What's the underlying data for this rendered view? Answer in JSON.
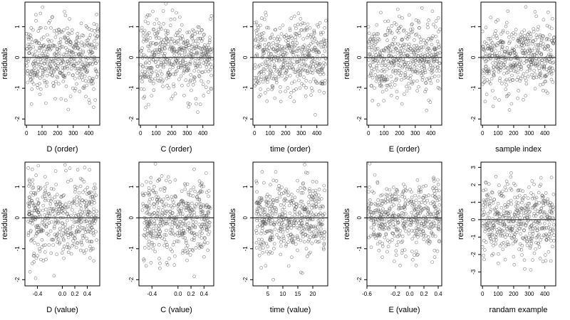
{
  "chart_data": [
    {
      "type": "scatter",
      "xlabel": "D (order)",
      "ylabel": "residuals",
      "xlim": [
        -10,
        470
      ],
      "ylim": [
        -2.2,
        1.8
      ],
      "xticks": [
        "0",
        "100",
        "200",
        "300",
        "400"
      ],
      "xtick_values": [
        0,
        100,
        200,
        300,
        400
      ],
      "yticks": [
        "-2",
        "-1",
        "0",
        "1"
      ],
      "ytick_values": [
        -2,
        -1,
        0,
        1
      ],
      "hline": 0,
      "x_kind": "index",
      "n": 460,
      "y_sd": 0.6,
      "seed": 11
    },
    {
      "type": "scatter",
      "xlabel": "C (order)",
      "ylabel": "residuals",
      "xlim": [
        -10,
        470
      ],
      "ylim": [
        -2.2,
        1.8
      ],
      "xticks": [
        "0",
        "100",
        "200",
        "300",
        "400"
      ],
      "xtick_values": [
        0,
        100,
        200,
        300,
        400
      ],
      "yticks": [
        "-2",
        "-1",
        "0",
        "1"
      ],
      "ytick_values": [
        -2,
        -1,
        0,
        1
      ],
      "hline": 0,
      "x_kind": "index",
      "n": 460,
      "y_sd": 0.6,
      "seed": 23
    },
    {
      "type": "scatter",
      "xlabel": "time (order)",
      "ylabel": "residuals",
      "xlim": [
        -10,
        470
      ],
      "ylim": [
        -2.2,
        1.8
      ],
      "xticks": [
        "0",
        "100",
        "200",
        "300",
        "400"
      ],
      "xtick_values": [
        0,
        100,
        200,
        300,
        400
      ],
      "yticks": [
        "-2",
        "-1",
        "0",
        "1"
      ],
      "ytick_values": [
        -2,
        -1,
        0,
        1
      ],
      "hline": 0,
      "x_kind": "index",
      "n": 460,
      "y_sd": 0.6,
      "seed": 37
    },
    {
      "type": "scatter",
      "xlabel": "E (order)",
      "ylabel": "residuals",
      "xlim": [
        -10,
        470
      ],
      "ylim": [
        -2.2,
        1.8
      ],
      "xticks": [
        "0",
        "100",
        "200",
        "300",
        "400"
      ],
      "xtick_values": [
        0,
        100,
        200,
        300,
        400
      ],
      "yticks": [
        "-2",
        "-1",
        "0",
        "1"
      ],
      "ytick_values": [
        -2,
        -1,
        0,
        1
      ],
      "hline": 0,
      "x_kind": "index",
      "n": 460,
      "y_sd": 0.6,
      "seed": 41
    },
    {
      "type": "scatter",
      "xlabel": "sample index",
      "ylabel": "residuals",
      "xlim": [
        -10,
        470
      ],
      "ylim": [
        -2.2,
        1.8
      ],
      "xticks": [
        "0",
        "100",
        "200",
        "300",
        "400"
      ],
      "xtick_values": [
        0,
        100,
        200,
        300,
        400
      ],
      "yticks": [
        "-2",
        "-1",
        "0",
        "1"
      ],
      "ytick_values": [
        -2,
        -1,
        0,
        1
      ],
      "hline": 0,
      "x_kind": "index",
      "n": 460,
      "y_sd": 0.6,
      "seed": 53
    },
    {
      "type": "scatter",
      "xlabel": "D (value)",
      "ylabel": "residuals",
      "xlim": [
        -0.6,
        0.6
      ],
      "ylim": [
        -2.2,
        1.8
      ],
      "xticks": [
        "-0.4",
        "0.0",
        "0.2",
        "0.4"
      ],
      "xtick_values": [
        -0.4,
        0.0,
        0.2,
        0.4
      ],
      "yticks": [
        "-2",
        "-1",
        "0",
        "1"
      ],
      "ytick_values": [
        -2,
        -1,
        0,
        1
      ],
      "hline": 0,
      "x_kind": "value",
      "x_range": [
        -0.55,
        0.55
      ],
      "n": 460,
      "y_sd": 0.6,
      "seed": 67
    },
    {
      "type": "scatter",
      "xlabel": "C (value)",
      "ylabel": "residuals",
      "xlim": [
        -0.6,
        0.55
      ],
      "ylim": [
        -2.2,
        1.8
      ],
      "xticks": [
        "-0.4",
        "0.0",
        "0.2",
        "0.4"
      ],
      "xtick_values": [
        -0.4,
        0.0,
        0.2,
        0.4
      ],
      "yticks": [
        "-2",
        "-1",
        "0",
        "1"
      ],
      "ytick_values": [
        -2,
        -1,
        0,
        1
      ],
      "hline": 0,
      "x_kind": "value",
      "x_range": [
        -0.55,
        0.5
      ],
      "n": 460,
      "y_sd": 0.6,
      "seed": 71
    },
    {
      "type": "scatter",
      "xlabel": "time (value)",
      "ylabel": "residuals",
      "xlim": [
        0,
        25
      ],
      "ylim": [
        -2.2,
        1.8
      ],
      "xticks": [
        "5",
        "10",
        "15",
        "20"
      ],
      "xtick_values": [
        5,
        10,
        15,
        20
      ],
      "yticks": [
        "-2",
        "-1",
        "0",
        "1"
      ],
      "ytick_values": [
        -2,
        -1,
        0,
        1
      ],
      "hline": 0,
      "x_kind": "value",
      "x_range": [
        1,
        24
      ],
      "n": 460,
      "y_sd": 0.6,
      "seed": 83
    },
    {
      "type": "scatter",
      "xlabel": "E (value)",
      "ylabel": "residuals",
      "xlim": [
        -0.6,
        0.45
      ],
      "ylim": [
        -2.2,
        1.8
      ],
      "xticks": [
        "-0.6",
        "-0.2",
        "0.0",
        "0.2",
        "0.4"
      ],
      "xtick_values": [
        -0.6,
        -0.2,
        0.0,
        0.2,
        0.4
      ],
      "yticks": [
        "-2",
        "-1",
        "0",
        "1"
      ],
      "ytick_values": [
        -2,
        -1,
        0,
        1
      ],
      "hline": 0,
      "x_kind": "value",
      "x_range": [
        -0.58,
        0.42
      ],
      "n": 460,
      "y_sd": 0.6,
      "seed": 97
    },
    {
      "type": "scatter",
      "xlabel": "randam example",
      "ylabel": "residuals",
      "xlim": [
        -10,
        470
      ],
      "ylim": [
        -3.8,
        3.3
      ],
      "xticks": [
        "0",
        "100",
        "200",
        "300",
        "400"
      ],
      "xtick_values": [
        0,
        100,
        200,
        300,
        400
      ],
      "yticks": [
        "-3",
        "-2",
        "-1",
        "0",
        "1",
        "2",
        "3"
      ],
      "ytick_values": [
        -3,
        -2,
        -1,
        0,
        1,
        2,
        3
      ],
      "hline": 0,
      "x_kind": "index",
      "n": 460,
      "y_sd": 1.05,
      "seed": 101
    }
  ]
}
